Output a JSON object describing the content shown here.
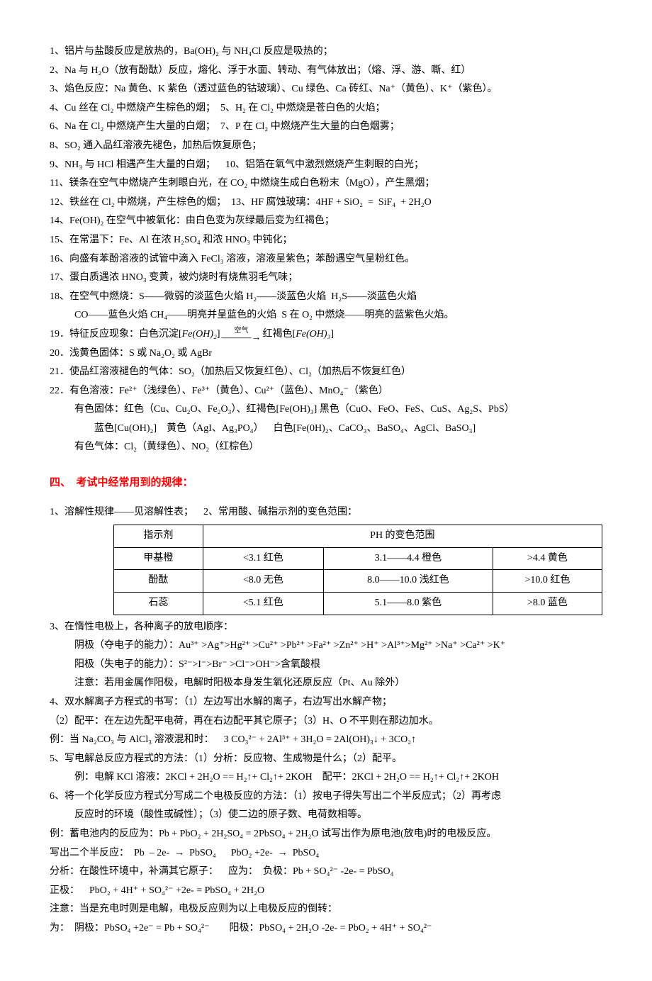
{
  "lines_top": [
    "1、铝片与盐酸反应是放热的，Ba(OH)₂ 与 NH₄Cl 反应是吸热的；",
    "2、Na 与 H₂O（放有酚酞）反应，熔化、浮于水面、转动、有气体放出；（熔、浮、游、嘶、红）",
    "3、焰色反应：Na 黄色、K 紫色（透过蓝色的钴玻璃）、Cu 绿色、Ca 砖红、Na⁺（黄色）、K⁺（紫色）。",
    "4、Cu 丝在 Cl₂ 中燃烧产生棕色的烟；\u00005、H₂ 在 Cl₂ 中燃烧是苍白色的火焰；",
    "6、Na 在 Cl₂ 中燃烧产生大量的白烟；\u00007、P 在 Cl₂ 中燃烧产生大量的白色烟雾；",
    "8、SO₂ 通入品红溶液先褪色，加热后恢复原色；",
    "9、NH₃ 与 HCl 相遇产生大量的白烟；\u0000\u000010、铝箔在氧气中激烈燃烧产生刺眼的白光；",
    "11、镁条在空气中燃烧产生刺眼白光，在 CO₂ 中燃烧生成白色粉末（MgO），产生黑烟；",
    "12、铁丝在 Cl₂ 中燃烧，产生棕色的烟；\u000013、HF 腐蚀玻璃：4HF + SiO₂\u0000=\u0000SiF₄\u0000+ 2H₂O",
    "14、Fe(OH)₂ 在空气中被氧化：由白色变为灰绿最后变为红褐色；",
    "15、在常温下：Fe、Al 在浓 H₂SO₄ 和浓 HNO₃ 中钝化；",
    "16、向盛有苯酚溶液的试管中滴入 FeCl₃ 溶液，溶液呈紫色；苯酚遇空气呈粉红色。",
    "17、蛋白质遇浓 HNO₃ 变黄，被灼烧时有烧焦羽毛气味；",
    "18、在空气中燃烧：S——微弱的淡蓝色火焰 H₂——淡蓝色火焰\u0000H₂S——淡蓝色火焰"
  ],
  "line18b": "CO——蓝色火焰 CH₄——明亮并呈蓝色的火焰\u0000S 在 O₂ 中燃烧——明亮的蓝紫色火焰。",
  "line19a": "19．特征反应现象：白色沉淀[",
  "line19b": "Fe(OH)₂",
  "line19c": "]",
  "line19d": "空气",
  "line19e": "红褐色[",
  "line19f": "Fe(OH)₃",
  "line19g": "]",
  "lines_mid": [
    "20．浅黄色固体：S 或 Na₂O₂ 或 AgBr",
    "21．使品红溶液褪色的气体：SO₂（加热后又恢复红色）、Cl₂（加热后不恢复红色）",
    "22．有色溶液：Fe²⁺（浅绿色）、Fe³⁺（黄色）、Cu²⁺（蓝色）、MnO₄⁻（紫色）"
  ],
  "line22b": "有色固体：红色（Cu、Cu₂O、Fe₂O₃）、红褐色[Fe(OH)₃] 黑色（CuO、FeO、FeS、CuS、Ag₂S、PbS）",
  "line22c": "蓝色[Cu(OH)₂]\u0000\u0000黄色（AgI、Ag₃PO₄）\u0000\u0000白色[Fe(0H)₂、CaCO₃、BaSO₄、AgCl、BaSO₃]",
  "line22d": "有色气体：Cl₂（黄绿色）、NO₂（红棕色）",
  "heading4": "四、\u0000考试中经常用到的规律：",
  "table_intro": "1、溶解性规律——见溶解性表；\u0000\u00002、常用酸、碱指示剂的变色范围：",
  "table": {
    "header": [
      "指示剂",
      "PH 的变色范围"
    ],
    "rows": [
      [
        "甲基橙",
        "<3.1 红色",
        "3.1——4.4 橙色",
        ">4.4 黄色"
      ],
      [
        "酚酞",
        "<8.0 无色",
        "8.0——10.0 浅红色",
        ">10.0 红色"
      ],
      [
        "石蕊",
        "<5.1 红色",
        "5.1——8.0 紫色",
        ">8.0 蓝色"
      ]
    ],
    "col_widths": [
      "120px",
      "170px",
      "250px",
      "150px"
    ]
  },
  "lines_bottom": [
    {
      "t": "3、在惰性电极上，各种离子的放电顺序：",
      "cls": ""
    },
    {
      "t": "阴极（夺电子的能力）：Au³⁺ >Ag⁺>Hg²⁺ >Cu²⁺ >Pb²⁺ >Fa²⁺ >Zn²⁺ >H⁺ >Al³⁺>Mg²⁺ >Na⁺ >Ca²⁺ >K⁺",
      "cls": "indent"
    },
    {
      "t": "阳极（失电子的能力）：S²⁻>I⁻>Br⁻ >Cl⁻>OH⁻>含氧酸根",
      "cls": "indent"
    },
    {
      "t": "注意：若用金属作阳极，电解时阳极本身发生氧化还原反应（Pt、Au 除外）",
      "cls": "indent"
    },
    {
      "t": "4、双水解离子方程式的书写：（1）左边写出水解的离子，右边写出水解产物；",
      "cls": ""
    },
    {
      "t": "（2）配平：在左边先配平电荷，再在右边配平其它原子；（3）H、O 不平则在那边加水。",
      "cls": ""
    },
    {
      "t": "例：当 Na₂CO₃ 与 AlCl₃ 溶液混和时：\u0000\u00003 CO₃²⁻ + 2Al³⁺ + 3H₂O = 2Al(OH)₃↓ + 3CO₂↑",
      "cls": ""
    },
    {
      "t": "5、写电解总反应方程式的方法：（1）分析：反应物、生成物是什么；（2）配平。",
      "cls": ""
    },
    {
      "t": "例：电解 KCl 溶液：2KCl + 2H₂O == H₂↑+ Cl₂↑+ 2KOH\u0000\u0000配平：2KCl + 2H₂O == H₂↑+ Cl₂↑+ 2KOH",
      "cls": "indent"
    },
    {
      "t": "6、将一个化学反应方程式分写成二个电极反应的方法：（1）按电子得失写出二个半反应式；（2）再考虑",
      "cls": ""
    },
    {
      "t": "反应时的环境（酸性或碱性）；（3）使二边的原子数、电荷数相等。",
      "cls": "indent"
    },
    {
      "t": "例：蓄电池内的反应为：Pb + PbO₂ + 2H₂SO₄ = 2PbSO₄ + 2H₂O 试写出作为原电池(放电)时的电极反应。",
      "cls": ""
    },
    {
      "t": "写出二个半反应：\u0000Pb\u0000– 2e-\u0000→\u0000PbSO₄\u0000\u0000\u0000PbO₂ +2e-\u0000→\u0000PbSO₄",
      "cls": ""
    },
    {
      "t": "分析：在酸性环境中，补满其它原子：\u0000\u0000应为：\u0000负极：Pb + SO₄²⁻ -2e- = PbSO₄",
      "cls": ""
    },
    {
      "t": "正极：\u0000\u0000PbO₂ + 4H⁺ + SO₄²⁻ +2e- = PbSO₄ + 2H₂O",
      "cls": ""
    },
    {
      "t": "注意：当是充电时则是电解，电极反应则为以上电极反应的倒转：",
      "cls": ""
    },
    {
      "t": "为：\u0000阴极：PbSO₄ +2e⁻ = Pb + SO₄²⁻\u0000\u0000\u0000\u0000阳极：PbSO₄ + 2H₂O -2e- = PbO₂ + 4H⁺ + SO₄²⁻",
      "cls": ""
    }
  ]
}
